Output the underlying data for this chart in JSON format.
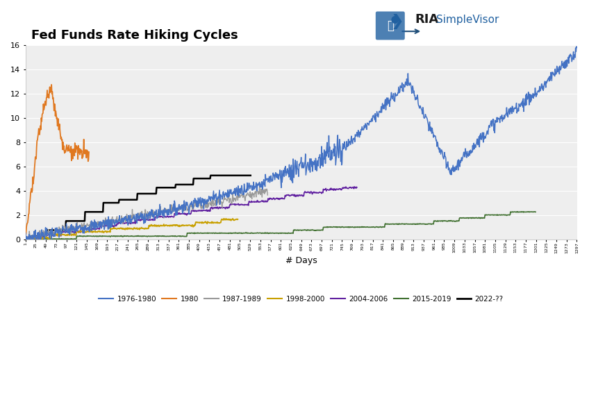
{
  "title": "Fed Funds Rate Hiking Cycles",
  "xlabel": "# Days",
  "ylabel": "",
  "ylim": [
    0,
    16
  ],
  "yticks": [
    0,
    2,
    4,
    6,
    8,
    10,
    12,
    14,
    16
  ],
  "xlim": [
    1,
    1297
  ],
  "background_color": "#ffffff",
  "plot_bg_color": "#eeeeee",
  "title_fontsize": 13,
  "legend_labels": [
    "1976-1980",
    "1980",
    "1987-1989",
    "1998-2000",
    "2004-2006",
    "2015-2019",
    "2022-??"
  ],
  "legend_colors": [
    "#4472C4",
    "#E07820",
    "#999999",
    "#C8A000",
    "#6020A0",
    "#407030",
    "#000000"
  ]
}
